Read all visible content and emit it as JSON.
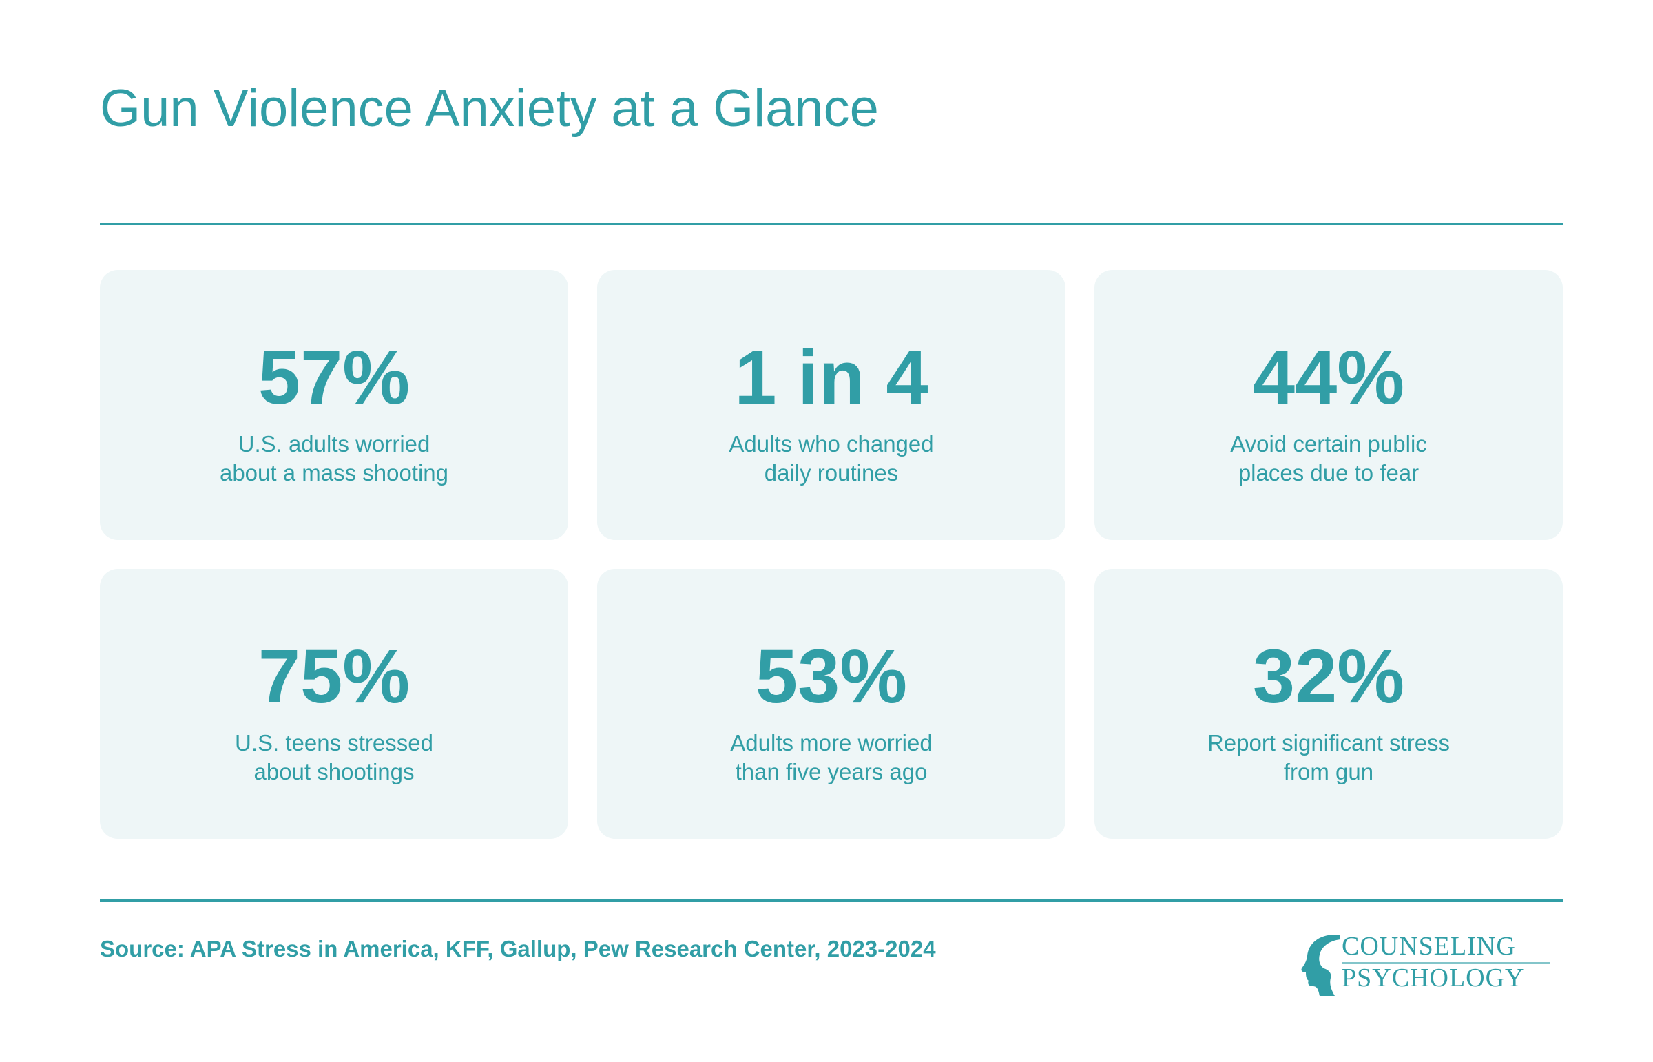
{
  "title": "Gun Violence Anxiety at a Glance",
  "stats": [
    {
      "value": "57%",
      "label": "U.S. adults worried about a mass shooting"
    },
    {
      "value": "1 in 4",
      "label": "Adults who changed daily routines"
    },
    {
      "value": "44%",
      "label": "Avoid certain public places due to fear"
    },
    {
      "value": "75%",
      "label": "U.S. teens stressed about shootings"
    },
    {
      "value": "53%",
      "label": "Adults more worried than five years ago"
    },
    {
      "value": "32%",
      "label": "Report significant stress from gun"
    }
  ],
  "source": "Source: APA Stress in America, KFF, Gallup, Pew Research Center, 2023-2024",
  "logo": {
    "line1": "COUNSELING",
    "line2": "PSYCHOLOGY",
    "icon": "head-profile-icon"
  },
  "colors": {
    "accent": "#319ea6",
    "card_background": "#eef6f7",
    "page_background": "#ffffff"
  }
}
